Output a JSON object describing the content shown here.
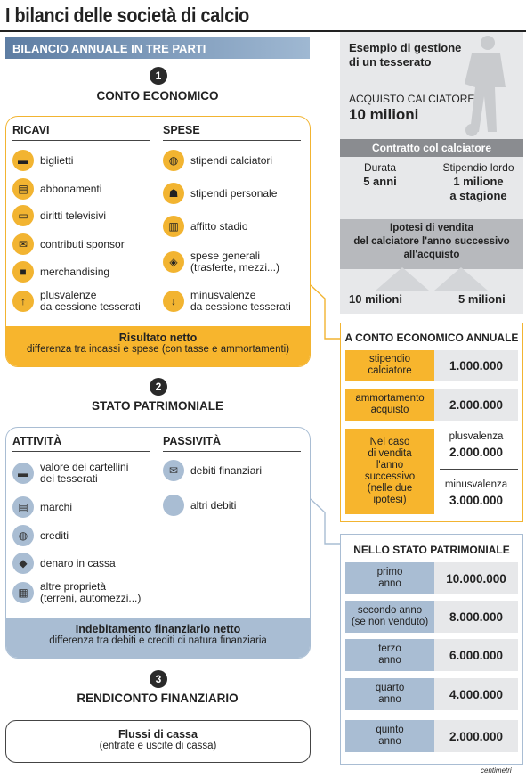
{
  "title": "I bilanci delle società di calcio",
  "subtitle_bar": "BILANCIO ANNUALE IN TRE PARTI",
  "section1": {
    "number": "1",
    "title": "CONTO ECONOMICO",
    "ricavi_head": "RICAVI",
    "spese_head": "SPESE",
    "ricavi": [
      {
        "icon": "ticket-icon",
        "label": "biglietti"
      },
      {
        "icon": "season-ticket-icon",
        "label": "abbonamenti"
      },
      {
        "icon": "tv-icon",
        "label": "diritti televisivi"
      },
      {
        "icon": "sponsor-icon",
        "label": "contributi sponsor"
      },
      {
        "icon": "shirt-icon",
        "label": "merchandising"
      },
      {
        "icon": "arrow-up-icon",
        "label": "plusvalenze",
        "label2": "da cessione tesserati"
      }
    ],
    "spese": [
      {
        "icon": "coins-icon",
        "label": "stipendi calciatori"
      },
      {
        "icon": "people-icon",
        "label": "stipendi personale"
      },
      {
        "icon": "stadium-icon",
        "label": "affitto stadio"
      },
      {
        "icon": "general-costs-icon",
        "label": "spese generali",
        "label2": "(trasferte, mezzi...)"
      },
      {
        "icon": "arrow-down-icon",
        "label": "minusvalenze",
        "label2": "da cessione tesserati"
      }
    ],
    "foot_title": "Risultato netto",
    "foot_text": "differenza tra incassi e spese (con tasse e ammortamenti)"
  },
  "section2": {
    "number": "2",
    "title": "STATO PATRIMONIALE",
    "attivita_head": "ATTIVITÀ",
    "passivita_head": "PASSIVITÀ",
    "attivita": [
      {
        "icon": "player-cards-icon",
        "label": "valore dei cartellini",
        "label2": "dei tesserati"
      },
      {
        "icon": "trademark-icon",
        "label": "marchi"
      },
      {
        "icon": "credits-icon",
        "label": "crediti"
      },
      {
        "icon": "money-bag-icon",
        "label": "denaro in cassa"
      },
      {
        "icon": "property-icon",
        "label": "altre proprietà",
        "label2": "(terreni, automezzi...)"
      }
    ],
    "passivita": [
      {
        "icon": "debt-icon",
        "label": "debiti finanziari"
      },
      {
        "icon": "blank-icon",
        "label": "altri debiti"
      }
    ],
    "foot_title": "Indebitamento finanziario netto",
    "foot_text": "differenza tra debiti e crediti di natura finanziaria"
  },
  "section3": {
    "number": "3",
    "title": "RENDICONTO FINANZIARIO",
    "box_title": "Flussi di cassa",
    "box_text": "(entrate e uscite di cassa)"
  },
  "example": {
    "heading1": "Esempio di gestione",
    "heading2": "di un tesserato",
    "purchase_label": "ACQUISTO CALCIATORE",
    "purchase_value": "10 milioni",
    "contract_title": "Contratto col calciatore",
    "duration_label": "Durata",
    "duration_value": "5 anni",
    "salary_label": "Stipendio lordo",
    "salary_value1": "1 milione",
    "salary_value2": "a stagione",
    "hypo_line1": "Ipotesi di vendita",
    "hypo_line2": "del calciatore l'anno successivo",
    "hypo_line3": "all'acquisto",
    "hypo_a": "10 milioni",
    "hypo_b": "5 milioni"
  },
  "annual": {
    "title": "A CONTO ECONOMICO ANNUALE",
    "row1_label1": "stipendio",
    "row1_label2": "calciatore",
    "row1_value": "1.000.000",
    "row2_label1": "ammortamento",
    "row2_label2": "acquisto",
    "row2_value": "2.000.000",
    "row3_label": [
      "Nel caso",
      "di vendita",
      "l'anno",
      "successivo",
      "(nelle due",
      "ipotesi)"
    ],
    "plus_label": "plusvalenza",
    "plus_value": "2.000.000",
    "minus_label": "minusvalenza",
    "minus_value": "3.000.000"
  },
  "patrimonial": {
    "title": "NELLO STATO PATRIMONIALE",
    "rows": [
      {
        "label1": "primo",
        "label2": "anno",
        "value": "10.000.000"
      },
      {
        "label1": "secondo anno",
        "label2": "(se non venduto)",
        "value": "8.000.000"
      },
      {
        "label1": "terzo",
        "label2": "anno",
        "value": "6.000.000"
      },
      {
        "label1": "quarto",
        "label2": "anno",
        "value": "4.000.000"
      },
      {
        "label1": "quinto",
        "label2": "anno",
        "value": "2.000.000"
      }
    ]
  },
  "credit": "centimetri",
  "colors": {
    "yellow": "#f7b52d",
    "blue": "#a9bdd3",
    "grey": "#e7e8ea",
    "bar_blue": "#5d7da3"
  }
}
